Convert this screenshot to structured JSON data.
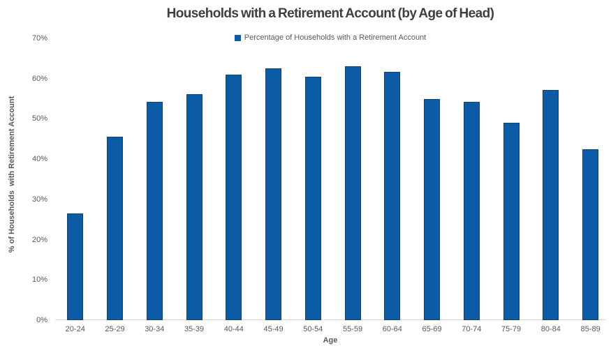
{
  "title": "Households with a Retirement Account (by Age of Head)",
  "legend": {
    "label": "Percentage of Households with a Retirement Account"
  },
  "y_axis": {
    "title": "% of Households  with Retirement Account"
  },
  "x_axis": {
    "title": "Age"
  },
  "colors": {
    "bar_fill": "#0B5BA7",
    "bar_border": "#17406B",
    "axis_line": "#D9D9D9",
    "axis_text": "#595959",
    "title_text": "#3F3F3F"
  },
  "chart_data": {
    "type": "bar",
    "title": "Households with a Retirement Account (by Age of Head)",
    "series_name": "Percentage of Households with a Retirement Account",
    "categories": [
      "20-24",
      "25-29",
      "30-34",
      "35-39",
      "40-44",
      "45-49",
      "50-54",
      "55-59",
      "60-64",
      "65-69",
      "70-74",
      "75-79",
      "80-84",
      "85-89"
    ],
    "values": [
      26.5,
      45.5,
      54.3,
      56.2,
      61.0,
      62.5,
      60.4,
      63.0,
      61.6,
      54.9,
      54.3,
      49.1,
      57.1,
      42.5
    ],
    "xlabel": "Age",
    "ylabel": "% of Households with Retirement Account",
    "ylim": [
      0,
      70
    ],
    "ytick_step": 10,
    "ytick_labels": [
      "0%",
      "10%",
      "20%",
      "30%",
      "40%",
      "50%",
      "60%",
      "70%"
    ],
    "grid": false,
    "legend_position": "top-center",
    "bar_color": "#0B5BA7"
  }
}
